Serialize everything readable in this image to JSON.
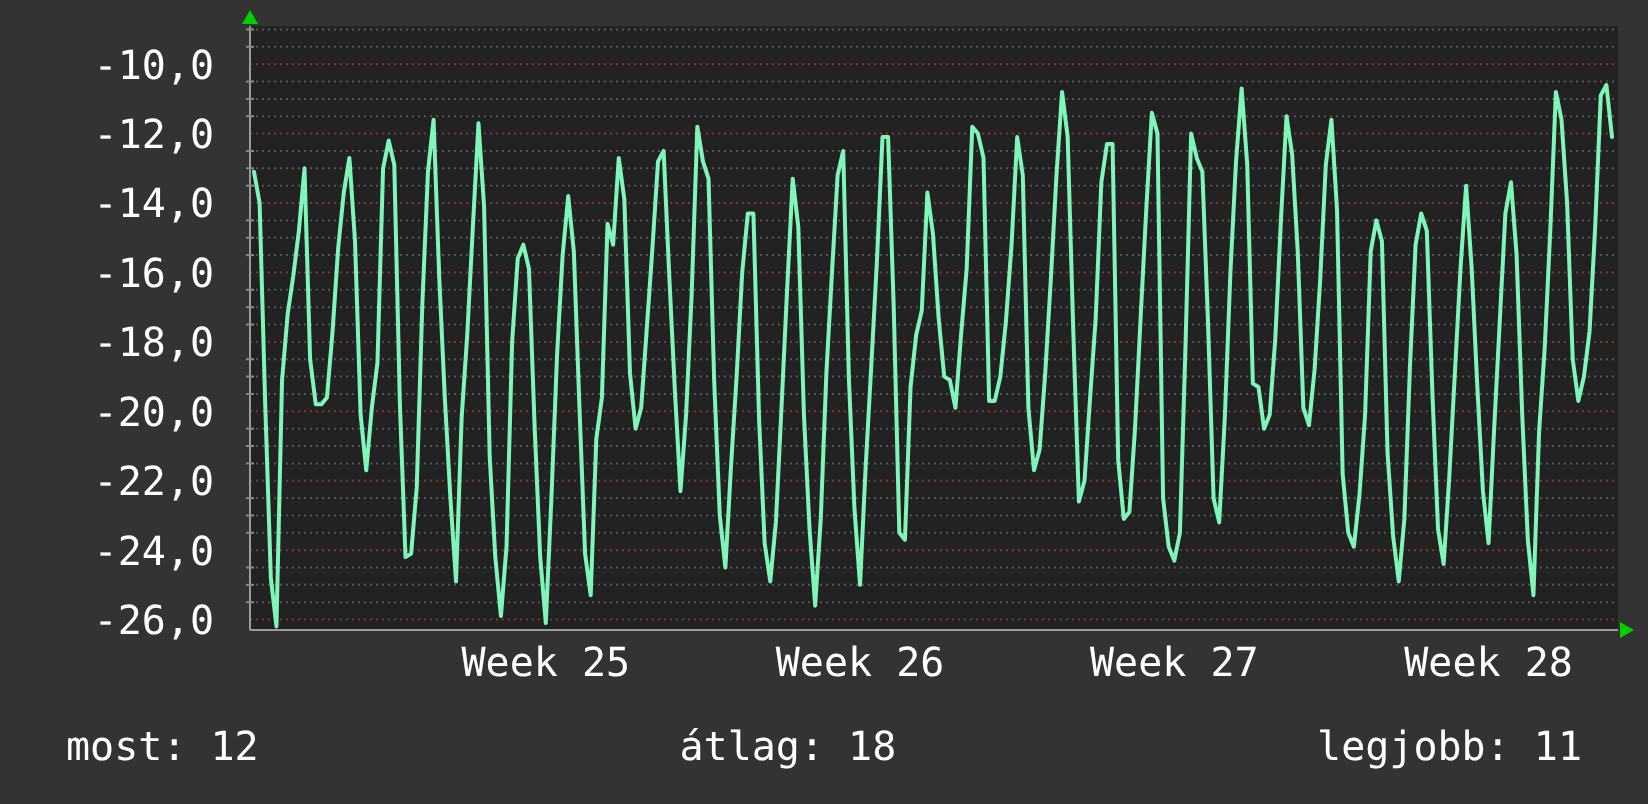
{
  "chart_data": {
    "type": "line",
    "color": "#80f5b8",
    "annotations": [
      "most: 12",
      "átlag: 18",
      "legjobb: 11"
    ],
    "categories": [
      null,
      null,
      null,
      null,
      null,
      null,
      null,
      null,
      null,
      null,
      null,
      null,
      null,
      null,
      null,
      null,
      null,
      null,
      null,
      null,
      null,
      null,
      null,
      null,
      null,
      null,
      null,
      null,
      null,
      null,
      null,
      null,
      null,
      null,
      null,
      null,
      null,
      null,
      null,
      null,
      null,
      null,
      null,
      null,
      null,
      null,
      null,
      null,
      null,
      null,
      null,
      null,
      "Week 25",
      null,
      null,
      null,
      null,
      null,
      null,
      null,
      null,
      null,
      null,
      null,
      null,
      null,
      null,
      null,
      null,
      null,
      null,
      null,
      null,
      null,
      null,
      null,
      null,
      null,
      null,
      null,
      null,
      null,
      null,
      null,
      null,
      null,
      null,
      null,
      null,
      null,
      null,
      null,
      null,
      null,
      null,
      null,
      null,
      null,
      null,
      null,
      null,
      null,
      null,
      null,
      null,
      null,
      null,
      null,
      "Week 26",
      null,
      null,
      null,
      null,
      null,
      null,
      null,
      null,
      null,
      null,
      null,
      null,
      null,
      null,
      null,
      null,
      null,
      null,
      null,
      null,
      null,
      null,
      null,
      null,
      null,
      null,
      null,
      null,
      null,
      null,
      null,
      null,
      null,
      null,
      null,
      null,
      null,
      null,
      null,
      null,
      null,
      null,
      null,
      null,
      null,
      null,
      null,
      null,
      null,
      null,
      null,
      null,
      null,
      null,
      null,
      "Week 27",
      null,
      null,
      null,
      null,
      null,
      null,
      null,
      null,
      null,
      null,
      null,
      null,
      null,
      null,
      null,
      null,
      null,
      null,
      null,
      null,
      null,
      null,
      null,
      null,
      null,
      null,
      null,
      null,
      null,
      null,
      null,
      null,
      null,
      null,
      null,
      null,
      null,
      null,
      null,
      null,
      null,
      null,
      null,
      null,
      null,
      null,
      null,
      null,
      null,
      null,
      null,
      null,
      null,
      null,
      null,
      "Week 28",
      null,
      null,
      null,
      null,
      null,
      null,
      null,
      null,
      null,
      null,
      null,
      null,
      null,
      null,
      null,
      null,
      null,
      null,
      null,
      null,
      null,
      null
    ],
    "values": [
      -13.1,
      -14.0,
      -19.8,
      -24.8,
      -26.2,
      -19.1,
      -17.2,
      -16.1,
      -14.8,
      -13.0,
      -18.5,
      -19.8,
      -19.8,
      -19.6,
      -17.7,
      -15.3,
      -13.7,
      -12.7,
      -15.1,
      -20.1,
      -21.7,
      -19.9,
      -18.6,
      -13.0,
      -12.2,
      -12.9,
      -19.8,
      -24.2,
      -24.1,
      -22.2,
      -16.9,
      -13.1,
      -11.6,
      -16.1,
      -19.6,
      -22.5,
      -24.9,
      -20.2,
      -17.8,
      -14.7,
      -11.7,
      -14.1,
      -21.3,
      -24.2,
      -25.9,
      -23.9,
      -18.0,
      -15.6,
      -15.2,
      -15.9,
      -20.4,
      -24.2,
      -26.1,
      -22.5,
      -18.4,
      -15.5,
      -13.8,
      -15.4,
      -19.9,
      -24.1,
      -25.3,
      -20.8,
      -19.6,
      -14.6,
      -15.2,
      -12.7,
      -13.9,
      -18.9,
      -20.5,
      -19.9,
      -17.6,
      -15.3,
      -12.8,
      -12.5,
      -16.1,
      -19.4,
      -22.3,
      -20.1,
      -16.6,
      -11.8,
      -12.8,
      -13.3,
      -19.1,
      -23.0,
      -24.5,
      -21.6,
      -19.0,
      -16.0,
      -14.3,
      -14.3,
      -20.2,
      -23.8,
      -24.9,
      -23.2,
      -19.9,
      -16.5,
      -13.3,
      -14.7,
      -20.1,
      -23.4,
      -25.6,
      -23.1,
      -18.9,
      -16.0,
      -13.2,
      -12.5,
      -19.0,
      -22.8,
      -25.0,
      -21.6,
      -18.7,
      -15.7,
      -12.1,
      -12.1,
      -17.0,
      -23.5,
      -23.7,
      -19.3,
      -17.8,
      -17.1,
      -13.7,
      -14.9,
      -17.3,
      -19.0,
      -19.1,
      -19.9,
      -17.8,
      -15.9,
      -11.8,
      -12.0,
      -12.7,
      -19.7,
      -19.7,
      -19.0,
      -17.4,
      -15.2,
      -12.1,
      -13.2,
      -19.9,
      -21.7,
      -21.1,
      -18.9,
      -16.2,
      -13.2,
      -10.8,
      -12.1,
      -17.7,
      -22.6,
      -22.0,
      -19.6,
      -17.3,
      -13.4,
      -12.3,
      -12.3,
      -21.4,
      -23.1,
      -22.9,
      -20.5,
      -17.3,
      -14.2,
      -11.4,
      -12.0,
      -22.5,
      -23.9,
      -24.3,
      -23.5,
      -18.1,
      -12.0,
      -12.7,
      -13.1,
      -17.4,
      -22.5,
      -23.2,
      -20.2,
      -16.0,
      -12.8,
      -10.7,
      -12.9,
      -19.2,
      -19.3,
      -20.5,
      -20.1,
      -17.9,
      -14.5,
      -11.5,
      -12.6,
      -15.4,
      -19.9,
      -20.4,
      -18.8,
      -16.2,
      -12.9,
      -11.6,
      -14.2,
      -21.8,
      -23.5,
      -23.9,
      -22.4,
      -20.1,
      -15.4,
      -14.5,
      -15.1,
      -21.2,
      -23.6,
      -24.9,
      -23.1,
      -18.7,
      -15.2,
      -14.3,
      -14.8,
      -19.5,
      -23.4,
      -24.4,
      -21.9,
      -18.9,
      -15.9,
      -13.5,
      -15.9,
      -19.3,
      -22.3,
      -23.8,
      -20.5,
      -17.4,
      -14.3,
      -13.4,
      -15.5,
      -20.1,
      -23.7,
      -25.3,
      -20.6,
      -18.2,
      -14.8,
      -10.8,
      -11.6,
      -14.0,
      -18.5,
      -19.7,
      -19.0,
      -17.7,
      -14.7,
      -10.9,
      -10.6,
      -12.1
    ],
    "ylim": [
      -26.3,
      -8.9
    ],
    "yticks": [
      {
        "value": -26,
        "label": "-26,0"
      },
      {
        "value": -25.5,
        "label": null
      },
      {
        "value": -25,
        "label": null
      },
      {
        "value": -24.5,
        "label": null
      },
      {
        "value": -24,
        "label": "-24,0"
      },
      {
        "value": -23.5,
        "label": null
      },
      {
        "value": -23,
        "label": null
      },
      {
        "value": -22.5,
        "label": null
      },
      {
        "value": -22,
        "label": "-22,0"
      },
      {
        "value": -21.5,
        "label": null
      },
      {
        "value": -21,
        "label": null
      },
      {
        "value": -20.5,
        "label": null
      },
      {
        "value": -20,
        "label": "-20,0"
      },
      {
        "value": -19.5,
        "label": null
      },
      {
        "value": -19,
        "label": null
      },
      {
        "value": -18.5,
        "label": null
      },
      {
        "value": -18,
        "label": "-18,0"
      },
      {
        "value": -17.5,
        "label": null
      },
      {
        "value": -17,
        "label": null
      },
      {
        "value": -16.5,
        "label": null
      },
      {
        "value": -16,
        "label": "-16,0"
      },
      {
        "value": -15.5,
        "label": null
      },
      {
        "value": -15,
        "label": null
      },
      {
        "value": -14.5,
        "label": null
      },
      {
        "value": -14,
        "label": "-14,0"
      },
      {
        "value": -13.5,
        "label": null
      },
      {
        "value": -13,
        "label": null
      },
      {
        "value": -12.5,
        "label": null
      },
      {
        "value": -12,
        "label": "-12,0"
      },
      {
        "value": -11.5,
        "label": null
      },
      {
        "value": -11,
        "label": null
      },
      {
        "value": -10.5,
        "label": null
      },
      {
        "value": -10,
        "label": "-10,0"
      },
      {
        "value": -9.5,
        "label": null
      },
      {
        "value": -9,
        "label": null
      }
    ],
    "grid": "y"
  }
}
